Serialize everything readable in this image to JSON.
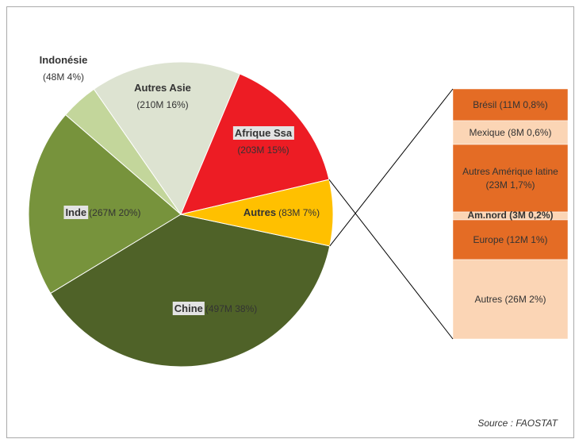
{
  "chart_data": {
    "type": "pie",
    "categories": [
      "Chine",
      "Inde",
      "Indonésie",
      "Autres Asie",
      "Afrique Ssa",
      "Autres"
    ],
    "values": [
      38,
      20,
      4,
      16,
      15,
      7
    ],
    "value_labels": [
      "(497M 38%)",
      "(267M 20%)",
      "(48M 4%)",
      "(210M 16%)",
      "(203M 15%)",
      "(83M 7%)"
    ],
    "colors": [
      "#4f6228",
      "#77933c",
      "#c3d69b",
      "#dde3d1",
      "#ed1c24",
      "#ffc000"
    ],
    "breakdown": {
      "type": "stacked-bar",
      "categories": [
        "Brésil",
        "Mexique",
        "Autres Amérique latine",
        "Am.nord",
        "Europe",
        "Autres"
      ],
      "values": [
        0.8,
        0.6,
        1.7,
        0.2,
        1,
        2
      ],
      "value_labels": [
        "(11M 0,8%)",
        "(8M 0,6%)",
        "(23M 1,7%)",
        "(3M 0,2%)",
        "(12M 1%)",
        "(26M 2%)"
      ],
      "colors": [
        "#e46c25",
        "#fbd5b5",
        "#e46c25",
        "#fbd5b5",
        "#e46c25",
        "#fbd5b5"
      ]
    },
    "source": "Source : FAOSTAT"
  }
}
